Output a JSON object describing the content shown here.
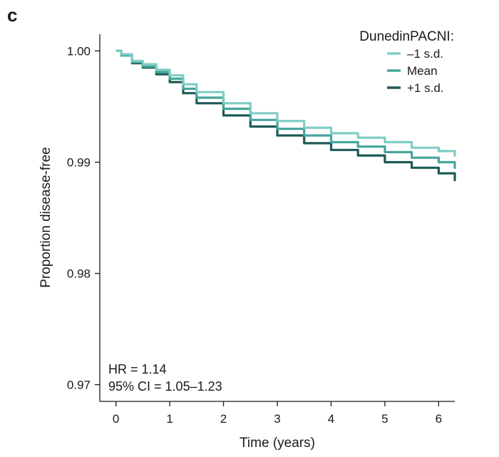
{
  "chart_data": {
    "panel_label": "c",
    "type": "line",
    "xlabel": "Time (years)",
    "ylabel": "Proportion disease-free",
    "xlim": [
      -0.3,
      6.3
    ],
    "ylim": [
      0.9685,
      1.0015
    ],
    "xticks": [
      0,
      1,
      2,
      3,
      4,
      5,
      6
    ],
    "yticks": [
      0.97,
      0.98,
      0.99,
      1.0
    ],
    "ytick_labels": [
      "0.97",
      "0.98",
      "0.99",
      "1.00"
    ],
    "grid": false,
    "legend": {
      "title": "DunedinPACNI:",
      "position": "top-right"
    },
    "annotations": [
      "HR = 1.14",
      "95% CI = 1.05–1.23"
    ],
    "series": [
      {
        "name": "–1 s.d.",
        "color": "#7fcdc4",
        "x": [
          0,
          0.1,
          0.3,
          0.5,
          0.75,
          1.0,
          1.25,
          1.5,
          2.0,
          2.5,
          3.0,
          3.5,
          4.0,
          4.5,
          5.0,
          5.5,
          6.0,
          6.3
        ],
        "y": [
          1.0,
          0.9997,
          0.9991,
          0.9988,
          0.9983,
          0.9978,
          0.997,
          0.9963,
          0.9953,
          0.9944,
          0.9937,
          0.9931,
          0.9926,
          0.9922,
          0.9918,
          0.9913,
          0.991,
          0.9905
        ]
      },
      {
        "name": "Mean",
        "color": "#46a59c",
        "x": [
          0,
          0.1,
          0.3,
          0.5,
          0.75,
          1.0,
          1.25,
          1.5,
          2.0,
          2.5,
          3.0,
          3.5,
          4.0,
          4.5,
          5.0,
          5.5,
          6.0,
          6.3
        ],
        "y": [
          1.0,
          0.9996,
          0.999,
          0.9986,
          0.9981,
          0.9975,
          0.9966,
          0.9958,
          0.9948,
          0.9938,
          0.993,
          0.9924,
          0.9918,
          0.9914,
          0.9909,
          0.9904,
          0.99,
          0.9894
        ]
      },
      {
        "name": "+1 s.d.",
        "color": "#1d5a55",
        "x": [
          0,
          0.1,
          0.3,
          0.5,
          0.75,
          1.0,
          1.25,
          1.5,
          2.0,
          2.5,
          3.0,
          3.5,
          4.0,
          4.5,
          5.0,
          5.5,
          6.0,
          6.3
        ],
        "y": [
          1.0,
          0.9996,
          0.9989,
          0.9985,
          0.9979,
          0.9972,
          0.9962,
          0.9953,
          0.9942,
          0.9932,
          0.9924,
          0.9917,
          0.9911,
          0.9906,
          0.99,
          0.9895,
          0.989,
          0.9883
        ]
      }
    ]
  }
}
